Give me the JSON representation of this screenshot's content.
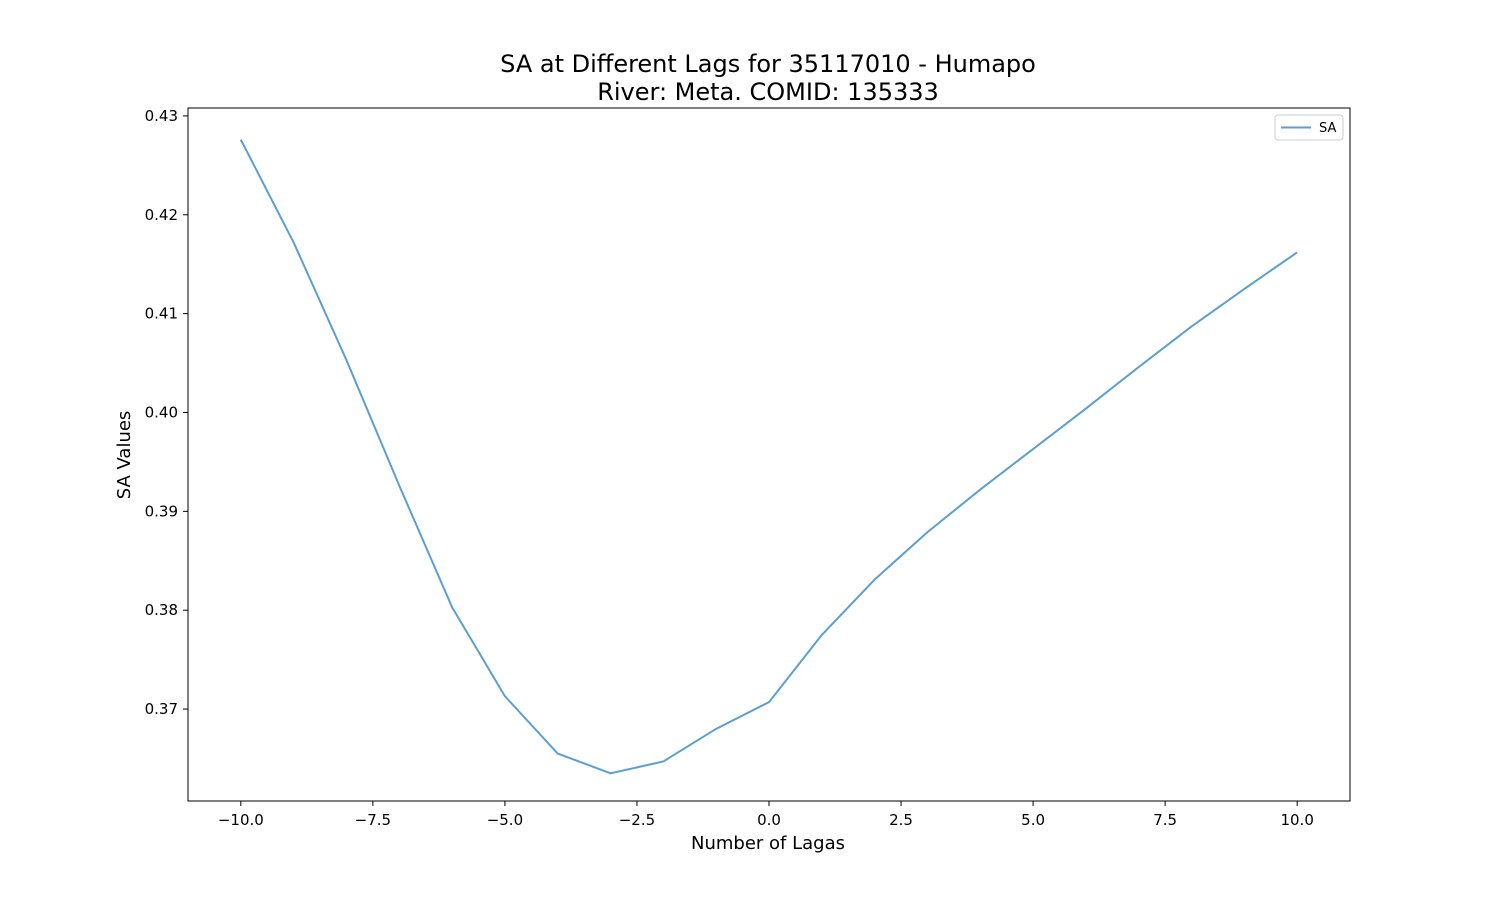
{
  "chart_data": {
    "type": "line",
    "title_line1": "SA at Different Lags for 35117010 - Humapo",
    "title_line2": "River: Meta. COMID: 135333",
    "xlabel": "Number of Lagas",
    "ylabel": "SA Values",
    "xlim": [
      -11.0,
      11.0
    ],
    "ylim": [
      0.3607,
      0.4308
    ],
    "x_ticks": [
      -10.0,
      -7.5,
      -5.0,
      -2.5,
      0.0,
      2.5,
      5.0,
      7.5,
      10.0
    ],
    "x_tick_labels": [
      "−10.0",
      "−7.5",
      "−5.0",
      "−2.5",
      "0.0",
      "2.5",
      "5.0",
      "7.5",
      "10.0"
    ],
    "y_ticks": [
      0.37,
      0.38,
      0.39,
      0.4,
      0.41,
      0.42,
      0.43
    ],
    "y_tick_labels": [
      "0.37",
      "0.38",
      "0.39",
      "0.40",
      "0.41",
      "0.42",
      "0.43"
    ],
    "legend": {
      "placement": "top-right"
    },
    "series": [
      {
        "name": "SA",
        "color": "#5b9fd0",
        "x": [
          -10,
          -9,
          -8,
          -7,
          -6,
          -5,
          -4,
          -3,
          -2,
          -1,
          0,
          1,
          2,
          3,
          4,
          5,
          6,
          7,
          8,
          9,
          10
        ],
        "y": [
          0.4276,
          0.4172,
          0.4053,
          0.3926,
          0.3803,
          0.3713,
          0.3655,
          0.3635,
          0.3647,
          0.368,
          0.3707,
          0.3775,
          0.3831,
          0.3879,
          0.3922,
          0.3963,
          0.4004,
          0.4046,
          0.4087,
          0.4125,
          0.4162
        ]
      }
    ]
  }
}
